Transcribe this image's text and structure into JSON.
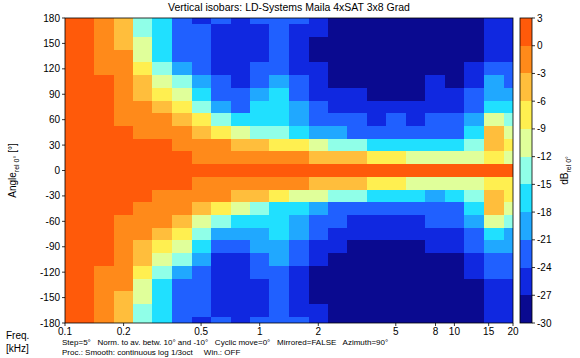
{
  "chart_data": {
    "type": "heatmap",
    "title": "Vertical isobars: LD-Systems  Maila  4xSAT 3x8 Grad",
    "xlabel": "Freq.",
    "xlabel_unit": "[kHz]",
    "ylabel": "Angle",
    "ylabel_sub": "rel 0°",
    "ylabel_unit": "[°]",
    "footnote": [
      "Step=5°   Norm. to av. betw. 10° and -10°   Cyclic move=0°   Mirrored=FALSE   Azimuth=90°",
      "Proc.: Smooth: continuous log 1/3oct     Win.: OFF"
    ],
    "log": "x",
    "grid": false,
    "xlim": [
      0.1,
      20
    ],
    "ylim": [
      -180,
      180
    ],
    "xticks": [
      0.1,
      0.2,
      0.5,
      1,
      2,
      5,
      8,
      10,
      15,
      20
    ],
    "yticks": [
      180,
      150,
      120,
      90,
      60,
      30,
      0,
      -30,
      -60,
      -90,
      -120,
      -150,
      -180
    ],
    "x": [
      0.1,
      0.125,
      0.16,
      0.2,
      0.25,
      0.315,
      0.4,
      0.5,
      0.63,
      0.8,
      1,
      1.25,
      1.6,
      2,
      2.5,
      3.15,
      4,
      5,
      6.3,
      8,
      10,
      12.5,
      16,
      20
    ],
    "y": [
      180,
      165,
      150,
      135,
      120,
      105,
      90,
      75,
      60,
      45,
      30,
      15,
      0,
      -15,
      -30,
      -45,
      -60,
      -75,
      -90,
      -105,
      -120,
      -135,
      -150,
      -165,
      -180
    ],
    "values": [
      [
        0,
        0,
        -1,
        -4,
        -13,
        -18,
        -24,
        -25,
        -24,
        -25,
        -24,
        -22,
        -24,
        -27,
        -28,
        -29,
        -30,
        -30,
        -29,
        -28,
        -29,
        -28,
        -26,
        -27
      ],
      [
        0,
        0,
        -1,
        -4,
        -13,
        -18,
        -23,
        -24,
        -25,
        -26,
        -25,
        -23,
        -25,
        -27,
        -29,
        -29,
        -30,
        -30,
        -30,
        -29,
        -29,
        -28,
        -26,
        -26
      ],
      [
        0,
        0,
        -1,
        -4,
        -12,
        -17,
        -22,
        -24,
        -26,
        -27,
        -26,
        -24,
        -26,
        -28,
        -29,
        -29,
        -30,
        -30,
        -30,
        -29,
        -29,
        -28,
        -26,
        -26
      ],
      [
        0,
        0,
        -1,
        -3,
        -11,
        -16,
        -22,
        -24,
        -27,
        -27,
        -25,
        -23,
        -25,
        -28,
        -29,
        -30,
        -30,
        -30,
        -30,
        -29,
        -30,
        -28,
        -25,
        -25
      ],
      [
        0,
        0,
        -1,
        -3,
        -9,
        -14,
        -20,
        -22,
        -26,
        -26,
        -24,
        -22,
        -25,
        -27,
        -29,
        -29,
        -30,
        -29,
        -29,
        -28,
        -29,
        -27,
        -23,
        -24
      ],
      [
        0,
        0,
        0,
        -2,
        -6,
        -10,
        -15,
        -20,
        -24,
        -25,
        -22,
        -20,
        -24,
        -27,
        -28,
        -28,
        -29,
        -28,
        -29,
        -27,
        -28,
        -25,
        -21,
        -22
      ],
      [
        0,
        0,
        0,
        -2,
        -4,
        -7,
        -12,
        -17,
        -22,
        -24,
        -20,
        -18,
        -22,
        -26,
        -27,
        -27,
        -28,
        -28,
        -28,
        -26,
        -27,
        -24,
        -20,
        -20
      ],
      [
        0,
        0,
        0,
        -1,
        -3,
        -5,
        -9,
        -14,
        -20,
        -22,
        -18,
        -16,
        -21,
        -24,
        -26,
        -25,
        -26,
        -27,
        -27,
        -25,
        -26,
        -22,
        -16,
        -18
      ],
      [
        0,
        0,
        0,
        -1,
        -2,
        -3,
        -5,
        -9,
        -14,
        -17,
        -18,
        -17,
        -20,
        -22,
        -24,
        -24,
        -25,
        -24,
        -26,
        -24,
        -24,
        -20,
        -10,
        -14
      ],
      [
        0,
        0,
        0,
        0,
        -1,
        -1,
        -2,
        -4,
        -7,
        -10,
        -13,
        -15,
        -18,
        -20,
        -21,
        -22,
        -22,
        -22,
        -24,
        -22,
        -22,
        -18,
        -6,
        -10
      ],
      [
        0,
        0,
        0,
        0,
        0,
        0,
        -1,
        -2,
        -3,
        -4,
        -6,
        -7,
        -9,
        -12,
        -14,
        -15,
        -16,
        -17,
        -18,
        -18,
        -18,
        -14,
        -5,
        -8
      ],
      [
        0,
        0,
        0,
        0,
        0,
        0,
        0,
        -1,
        -1,
        -1,
        -2,
        -2,
        -3,
        -4,
        -5,
        -6,
        -8,
        -9,
        -10,
        -11,
        -12,
        -10,
        -8,
        -10
      ],
      [
        0,
        0,
        0,
        0,
        0,
        0,
        0,
        0,
        0,
        0,
        0,
        0,
        0,
        0,
        0,
        0,
        0,
        0,
        0,
        0,
        0,
        0,
        0,
        0
      ],
      [
        0,
        0,
        0,
        0,
        0,
        0,
        0,
        -1,
        -1,
        -2,
        -2,
        -3,
        -3,
        -4,
        -5,
        -6,
        -7,
        -9,
        -10,
        -11,
        -12,
        -10,
        -7,
        -9
      ],
      [
        0,
        0,
        0,
        0,
        0,
        -1,
        -1,
        -2,
        -3,
        -5,
        -6,
        -8,
        -10,
        -12,
        -13,
        -15,
        -16,
        -17,
        -18,
        -19,
        -18,
        -15,
        -5,
        -8
      ],
      [
        0,
        0,
        0,
        0,
        -1,
        -1,
        -2,
        -4,
        -8,
        -11,
        -13,
        -16,
        -18,
        -20,
        -22,
        -22,
        -23,
        -22,
        -23,
        -22,
        -23,
        -18,
        -6,
        -11
      ],
      [
        0,
        0,
        0,
        -1,
        -2,
        -3,
        -6,
        -10,
        -15,
        -17,
        -17,
        -18,
        -21,
        -22,
        -24,
        -25,
        -25,
        -25,
        -26,
        -24,
        -24,
        -21,
        -12,
        -15
      ],
      [
        0,
        0,
        0,
        -1,
        -3,
        -5,
        -9,
        -15,
        -20,
        -21,
        -19,
        -17,
        -21,
        -24,
        -26,
        -26,
        -27,
        -27,
        -27,
        -26,
        -26,
        -23,
        -17,
        -19
      ],
      [
        0,
        0,
        0,
        -2,
        -4,
        -7,
        -12,
        -18,
        -22,
        -23,
        -21,
        -19,
        -23,
        -26,
        -27,
        -28,
        -28,
        -28,
        -29,
        -27,
        -27,
        -24,
        -20,
        -21
      ],
      [
        0,
        0,
        0,
        -2,
        -6,
        -10,
        -15,
        -21,
        -25,
        -25,
        -22,
        -21,
        -24,
        -27,
        -28,
        -29,
        -29,
        -29,
        -29,
        -28,
        -28,
        -26,
        -22,
        -22
      ],
      [
        0,
        0,
        -1,
        -3,
        -9,
        -14,
        -20,
        -22,
        -26,
        -26,
        -24,
        -22,
        -25,
        -28,
        -29,
        -29,
        -30,
        -29,
        -30,
        -28,
        -29,
        -27,
        -24,
        -24
      ],
      [
        0,
        0,
        -1,
        -3,
        -11,
        -16,
        -22,
        -24,
        -27,
        -26,
        -25,
        -23,
        -26,
        -28,
        -29,
        -30,
        -30,
        -30,
        -30,
        -29,
        -30,
        -28,
        -25,
        -25
      ],
      [
        0,
        0,
        -1,
        -4,
        -12,
        -17,
        -22,
        -24,
        -26,
        -27,
        -25,
        -24,
        -26,
        -28,
        -29,
        -30,
        -30,
        -30,
        -30,
        -29,
        -29,
        -28,
        -26,
        -26
      ],
      [
        0,
        0,
        -1,
        -4,
        -13,
        -18,
        -23,
        -24,
        -25,
        -26,
        -25,
        -23,
        -25,
        -27,
        -29,
        -29,
        -30,
        -30,
        -30,
        -29,
        -29,
        -28,
        -26,
        -26
      ],
      [
        0,
        0,
        -1,
        -4,
        -13,
        -18,
        -24,
        -25,
        -24,
        -25,
        -24,
        -22,
        -24,
        -27,
        -28,
        -29,
        -30,
        -30,
        -29,
        -28,
        -29,
        -28,
        -26,
        -27
      ]
    ],
    "colorbar": {
      "label": "dB",
      "label_sub": "rel 0°",
      "lim": [
        -30,
        3
      ],
      "ticks": [
        3,
        0,
        -3,
        -6,
        -9,
        -12,
        -15,
        -18,
        -21,
        -24,
        -27,
        -30
      ]
    }
  }
}
